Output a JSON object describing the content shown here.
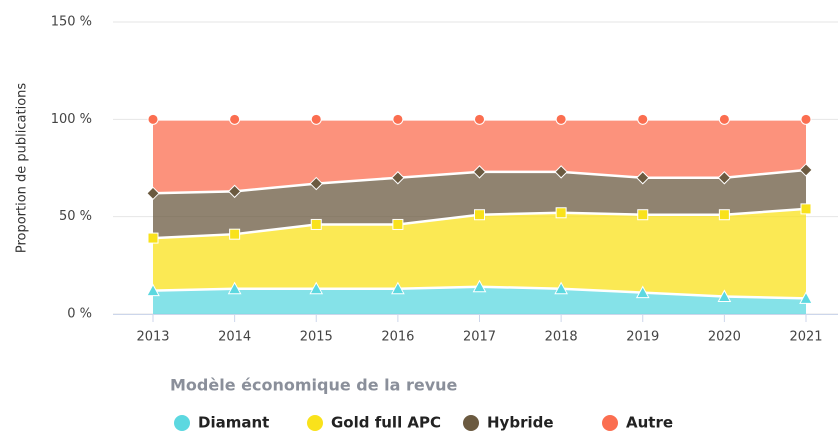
{
  "chart_data": {
    "type": "area",
    "stacked": true,
    "y_label": "Proportion de publications",
    "legend_title": "Modèle économique de la revue",
    "legend": "bottom",
    "grid": true,
    "categories": [
      "2013",
      "2014",
      "2015",
      "2016",
      "2017",
      "2018",
      "2019",
      "2020",
      "2021"
    ],
    "ylim": [
      0,
      150
    ],
    "yticks": [
      {
        "value": 0,
        "label": "0 %"
      },
      {
        "value": 50,
        "label": "50 %"
      },
      {
        "value": 100,
        "label": "100 %"
      },
      {
        "value": 150,
        "label": "150 %"
      }
    ],
    "series": [
      {
        "name": "Diamant",
        "color": "#5cd8e0",
        "marker": "triangle",
        "values": [
          12,
          13,
          13,
          13,
          14,
          13,
          11,
          9,
          8
        ]
      },
      {
        "name": "Gold full APC",
        "color": "#f9e21b",
        "marker": "square",
        "values": [
          27,
          28,
          33,
          33,
          37,
          39,
          40,
          42,
          46
        ]
      },
      {
        "name": "Hybride",
        "color": "#6b5a40",
        "marker": "diamond",
        "values": [
          23,
          22,
          21,
          24,
          22,
          21,
          19,
          19,
          20
        ]
      },
      {
        "name": "Autre",
        "color": "#fb6e50",
        "marker": "circle",
        "values": [
          38,
          37,
          33,
          30,
          27,
          27,
          30,
          30,
          26
        ]
      }
    ]
  }
}
